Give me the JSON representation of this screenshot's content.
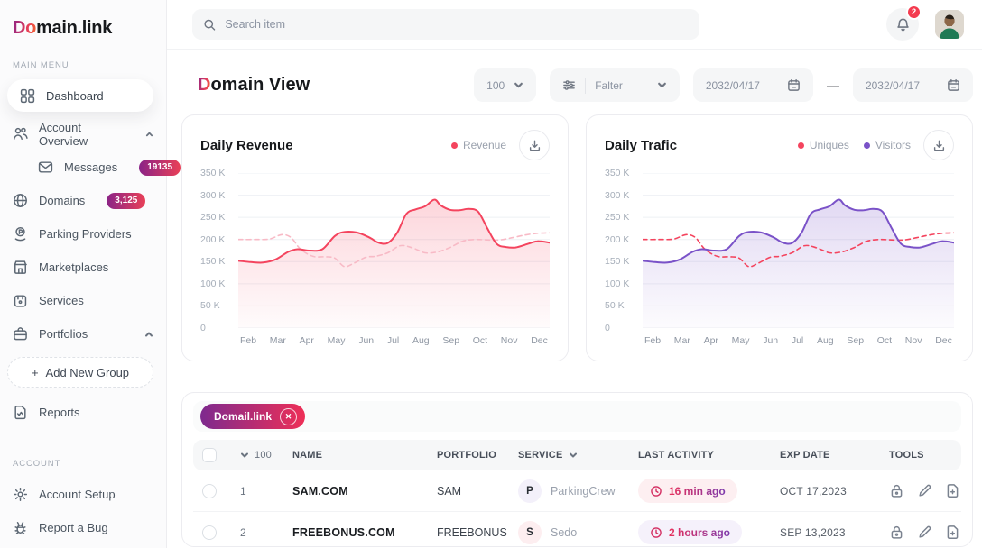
{
  "brand": {
    "logo_accent": "Do",
    "logo_rest": "main.link"
  },
  "topbar": {
    "search_placeholder": "Search item",
    "notification_count": "2"
  },
  "sidebar": {
    "sections": {
      "main": "MAIN MENU",
      "account": "ACCOUNT"
    },
    "dashboard": "Dashboard",
    "account_overview": "Account Overview",
    "messages": "Messages",
    "messages_badge": "19135",
    "domains": "Domains",
    "domains_badge": "3,125",
    "parking_providers": "Parking Providers",
    "marketplaces": "Marketplaces",
    "services": "Services",
    "portfolios": "Portfolios",
    "add_group_plus": "+",
    "add_group_label": "Add New Group",
    "reports": "Reports",
    "account_setup": "Account Setup",
    "report_a_bug": "Report a Bug"
  },
  "page": {
    "title_accent": "D",
    "title_rest": "omain View",
    "controls": {
      "page_size": "100",
      "filter_label": "Falter",
      "date_from": "2032/04/17",
      "date_separator": "—",
      "date_to": "2032/04/17"
    }
  },
  "chart_data": [
    {
      "type": "line",
      "title": "Daily Revenue",
      "unit": "K",
      "grid": true,
      "legend_position": "top-right",
      "ylim_k": [
        0,
        350
      ],
      "y_tick_labels": [
        "350 K",
        "300 K",
        "250 K",
        "200 K",
        "150 K",
        "100 K",
        "50 K",
        "0"
      ],
      "x_labels": [
        "Feb",
        "Mar",
        "Apr",
        "May",
        "Jun",
        "Jul",
        "Aug",
        "Sep",
        "Oct",
        "Nov",
        "Dec"
      ],
      "legend": [
        {
          "label": "Revenue",
          "color": "#f4445e"
        }
      ],
      "series": [
        {
          "name": "Revenue",
          "line": "solid",
          "color": "#f4445e",
          "area_fill": true,
          "points_x": [
            0,
            4,
            8,
            12,
            16,
            19,
            23,
            27,
            31,
            34,
            38,
            42,
            45,
            48,
            51,
            54,
            57,
            60,
            63,
            65,
            68,
            71,
            74,
            77,
            80,
            83,
            86,
            89,
            93,
            96,
            100
          ],
          "points_y_k": [
            152,
            149,
            148,
            155,
            172,
            178,
            175,
            178,
            208,
            217,
            216,
            205,
            193,
            192,
            215,
            258,
            268,
            275,
            290,
            277,
            267,
            266,
            269,
            263,
            225,
            190,
            183,
            182,
            190,
            196,
            193
          ]
        },
        {
          "name": "",
          "line": "dashed",
          "color": "#f8bac6",
          "area_fill": false,
          "points_x": [
            0,
            5,
            10,
            14,
            17,
            20,
            24,
            28,
            31,
            34,
            37,
            41,
            44,
            48,
            52,
            56,
            60,
            64,
            68,
            72,
            76,
            80,
            84,
            88,
            92,
            96,
            100
          ],
          "points_y_k": [
            200,
            200,
            201,
            211,
            204,
            178,
            162,
            161,
            158,
            139,
            146,
            160,
            162,
            170,
            186,
            181,
            170,
            172,
            182,
            196,
            200,
            199,
            199,
            204,
            210,
            214,
            215
          ]
        }
      ]
    },
    {
      "type": "line",
      "title": "Daily Trafic",
      "unit": "K",
      "grid": true,
      "legend_position": "top-right",
      "ylim_k": [
        0,
        350
      ],
      "y_tick_labels": [
        "350 K",
        "300 K",
        "250 K",
        "200 K",
        "150 K",
        "100 K",
        "50 K",
        "0"
      ],
      "x_labels": [
        "Feb",
        "Mar",
        "Apr",
        "May",
        "Jun",
        "Jul",
        "Aug",
        "Sep",
        "Oct",
        "Nov",
        "Dec"
      ],
      "legend": [
        {
          "label": "Uniques",
          "color": "#f4445e"
        },
        {
          "label": "Visitors",
          "color": "#7a52c8"
        }
      ],
      "series": [
        {
          "name": "Visitors",
          "line": "solid",
          "color": "#7a52c8",
          "area_fill": true,
          "points_x": [
            0,
            4,
            8,
            12,
            16,
            19,
            23,
            27,
            31,
            34,
            38,
            42,
            45,
            48,
            51,
            54,
            57,
            60,
            63,
            65,
            68,
            71,
            74,
            77,
            80,
            83,
            86,
            89,
            93,
            96,
            100
          ],
          "points_y_k": [
            152,
            149,
            148,
            155,
            172,
            178,
            175,
            178,
            208,
            217,
            216,
            205,
            193,
            192,
            215,
            258,
            268,
            275,
            290,
            277,
            267,
            266,
            269,
            263,
            225,
            190,
            183,
            182,
            190,
            196,
            193
          ]
        },
        {
          "name": "Uniques",
          "line": "dashed",
          "color": "#f4445e",
          "area_fill": false,
          "points_x": [
            0,
            5,
            10,
            14,
            17,
            20,
            24,
            28,
            31,
            34,
            37,
            41,
            44,
            48,
            52,
            56,
            60,
            64,
            68,
            72,
            76,
            80,
            84,
            88,
            92,
            96,
            100
          ],
          "points_y_k": [
            200,
            200,
            201,
            211,
            204,
            178,
            162,
            161,
            158,
            139,
            146,
            160,
            162,
            170,
            186,
            181,
            170,
            172,
            182,
            196,
            200,
            199,
            199,
            204,
            210,
            214,
            215
          ]
        }
      ]
    }
  ],
  "table": {
    "filter_tag": "Domail.link",
    "filter_tag_close": "✕",
    "headers": {
      "count": "100",
      "name": "NAME",
      "portfolio": "PORTFOLIO",
      "service": "SERVICE",
      "last_activity": "LAST ACTIVITY",
      "exp_date": "EXP DATE",
      "tools": "TOOLS"
    },
    "rows": [
      {
        "num": "1",
        "name": "SAM.COM",
        "portfolio": "SAM",
        "service_initial": "P",
        "service_name": "ParkingCrew",
        "last_activity": "16 min ago",
        "exp_date": "OCT 17,2023"
      },
      {
        "num": "2",
        "name": "FREEBONUS.COM",
        "portfolio": "FREEBONUS",
        "service_initial": "S",
        "service_name": "Sedo",
        "last_activity": "2 hours ago",
        "exp_date": "SEP 13,2023"
      }
    ]
  },
  "colors": {
    "accent_gradient": [
      "#8a2387",
      "#e94057",
      "#f27121"
    ],
    "revenue_line": "#f4445e",
    "revenue_dashed": "#f8bac6",
    "visitors_line": "#7a52c8",
    "uniques_dashed": "#f4445e",
    "badge_gradient": [
      "#8a2387",
      "#e94057"
    ],
    "notification_red": "#f43b4f"
  }
}
